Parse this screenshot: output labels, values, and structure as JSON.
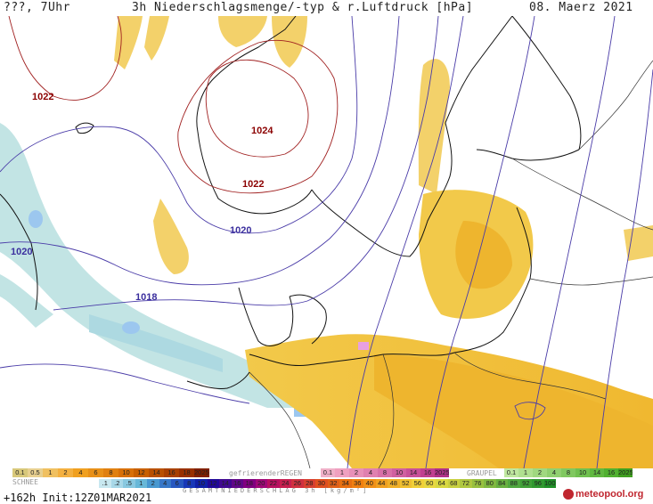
{
  "header": {
    "left": "???, 7Uhr",
    "title": "3h Niederschlagsmenge/-typ & r.Luftdruck [hPa]",
    "date": "08. Maerz 2021"
  },
  "isobars": [
    {
      "label": "1022",
      "color": "#8b0000"
    },
    {
      "label": "1024",
      "color": "#8b0000"
    },
    {
      "label": "1022",
      "color": "#8b0000"
    },
    {
      "label": "1020",
      "color": "#3b2f9e"
    },
    {
      "label": "1020",
      "color": "#3b2f9e"
    },
    {
      "label": "1018",
      "color": "#3b2f9e"
    }
  ],
  "legend": {
    "schnee_label": "SCHNEE",
    "schnee_values": [
      "0.1",
      "0.5",
      "1",
      "2",
      "4",
      "6",
      "8",
      "10",
      "12",
      "14",
      "16",
      "18",
      "2025+"
    ],
    "regen_label": "gefrierenderREGEN",
    "regen_values": [
      "0.1",
      "1",
      "2",
      "4",
      "8",
      "10",
      "14",
      "16",
      "2025+"
    ],
    "graupel_label": "GRAUPEL",
    "graupel_values": [
      "0.1",
      "1",
      "2",
      "4",
      "8",
      "10",
      "14",
      "16",
      "2025+"
    ],
    "gesamt_values": [
      ".1",
      ".2",
      ".5",
      "1",
      "2",
      "4",
      "6",
      "8",
      "10",
      "12",
      "14",
      "16",
      "18",
      "20",
      "22",
      "24",
      "26",
      "28",
      "30",
      "32",
      "34",
      "36",
      "40",
      "44",
      "48",
      "52",
      "56",
      "60",
      "64",
      "68",
      "72",
      "76",
      "80",
      "84",
      "88",
      "92",
      "96",
      "100"
    ],
    "gesamt_label": "GESAMTNIEDERSCHLAG 3h [kg/m²]",
    "colors": {
      "schnee": [
        "#d8c87a",
        "#e8d090",
        "#f0c060",
        "#f4b040",
        "#f0a020",
        "#e89018",
        "#e08010",
        "#d87008",
        "#c86000",
        "#b85000",
        "#a84000",
        "#983000",
        "#802000"
      ],
      "regen": [
        "#f0b0c8",
        "#f0a0c0",
        "#e890b8",
        "#e080b0",
        "#d870a8",
        "#d060a0",
        "#c85098",
        "#c04090",
        "#b03088"
      ],
      "graupel": [
        "#c0e8a0",
        "#b0e090",
        "#a0d880",
        "#90d070",
        "#80c860",
        "#70c050",
        "#60b840",
        "#50b030",
        "#40a020"
      ],
      "gesamt": [
        "#c8e8f0",
        "#a8d8e8",
        "#88c8e0",
        "#68b8d8",
        "#4898d0",
        "#3878c8",
        "#2858c0",
        "#1838b8",
        "#1020a8",
        "#200898",
        "#400890",
        "#600888",
        "#800080",
        "#a00878",
        "#b81060",
        "#c82050",
        "#d03040",
        "#d84030",
        "#e05020",
        "#e06018",
        "#e87010",
        "#f08010",
        "#f09018",
        "#f0a020",
        "#f0b028",
        "#f0c030",
        "#f0d038",
        "#e8d840",
        "#d8d840",
        "#c8d040",
        "#b0c840",
        "#98c040",
        "#80b840",
        "#68b040",
        "#50a840",
        "#40a038",
        "#309830",
        "#209028"
      ]
    }
  },
  "footer": {
    "left": "+162h  Init:12Z01MAR2021",
    "brand": "meteopool.org"
  }
}
